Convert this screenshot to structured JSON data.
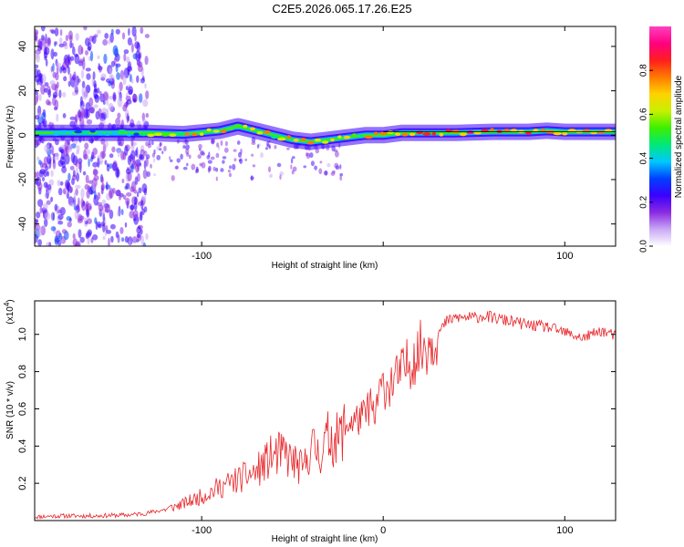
{
  "title": "C2E5.2026.065.17.26.E25",
  "chart_data": [
    {
      "type": "heatmap",
      "name": "spectrogram",
      "xlabel": "Height of straight line (km)",
      "ylabel": "Frequency (Hz)",
      "xlim": [
        -192,
        128
      ],
      "ylim": [
        -50,
        49
      ],
      "xticks": [
        -100,
        0,
        100
      ],
      "xtick_labels": [
        "-100",
        "",
        "100"
      ],
      "yticks": [
        -40,
        -20,
        0,
        20,
        40
      ],
      "ytick_labels": [
        "-40",
        "-20",
        "0",
        "20",
        "40"
      ],
      "ridge": {
        "x": [
          -192,
          -150,
          -130,
          -110,
          -90,
          -80,
          -70,
          -60,
          -50,
          -40,
          -30,
          -20,
          -10,
          0,
          10,
          20,
          40,
          60,
          80,
          90,
          100,
          110,
          128
        ],
        "y": [
          1,
          1,
          1,
          0.5,
          2,
          4,
          2,
          0,
          -2,
          -3,
          -2,
          -1,
          0,
          0,
          1,
          1,
          1,
          1.5,
          1.5,
          2,
          1.5,
          1.5,
          1.5
        ]
      },
      "colorbar": {
        "label": "Normalized spectral amplitude",
        "range": [
          0,
          1
        ],
        "ticks": [
          0,
          0.2,
          0.4,
          0.6,
          0.8
        ],
        "tick_labels": [
          "0.0",
          "0.2",
          "0.4",
          "0.6",
          "0.8"
        ],
        "colors": [
          "#ffffff",
          "#c9a8f5",
          "#8a2be2",
          "#3a00ff",
          "#0040ff",
          "#00c8ff",
          "#00e87a",
          "#3cf000",
          "#c8f000",
          "#ffd200",
          "#ff7a00",
          "#ff1e1e",
          "#ff0080",
          "#ff40c0"
        ]
      }
    },
    {
      "type": "line",
      "name": "snr",
      "xlabel": "Height of straight line (km)",
      "ylabel": "SNR (10 * v/v)",
      "multiplier": "(x10",
      "multiplier_exp": "4",
      "multiplier_close": ")",
      "xlim": [
        -192,
        128
      ],
      "ylim": [
        0,
        11800
      ],
      "xticks": [
        -100,
        0,
        100
      ],
      "xtick_labels": [
        "-100",
        "0",
        "100"
      ],
      "yticks": [
        2000,
        4000,
        6000,
        8000,
        10000
      ],
      "ytick_labels": [
        "0.2",
        "0.4",
        "0.6",
        "0.8",
        "1.0"
      ],
      "color": "#e8262a",
      "series": [
        {
          "name": "SNR",
          "x": [
            -192,
            -180,
            -160,
            -140,
            -130,
            -120,
            -110,
            -100,
            -90,
            -80,
            -70,
            -62,
            -55,
            -50,
            -44,
            -40,
            -35,
            -30,
            -25,
            -20,
            -15,
            -10,
            -7,
            -5,
            -3,
            0,
            5,
            10,
            15,
            20,
            25,
            30,
            35,
            40,
            45,
            50,
            55,
            60,
            65,
            70,
            80,
            90,
            100,
            110,
            120,
            128
          ],
          "y": [
            200,
            250,
            250,
            300,
            400,
            600,
            900,
            1300,
            1800,
            2200,
            2600,
            3400,
            3600,
            3200,
            2700,
            4000,
            3600,
            4500,
            4300,
            5200,
            5400,
            5600,
            6400,
            5200,
            6600,
            7200,
            7400,
            7900,
            8600,
            9100,
            9600,
            10000,
            10700,
            10900,
            10900,
            10900,
            11000,
            10900,
            10800,
            10700,
            10500,
            10400,
            10100,
            9800,
            10200,
            9900
          ]
        }
      ]
    }
  ]
}
